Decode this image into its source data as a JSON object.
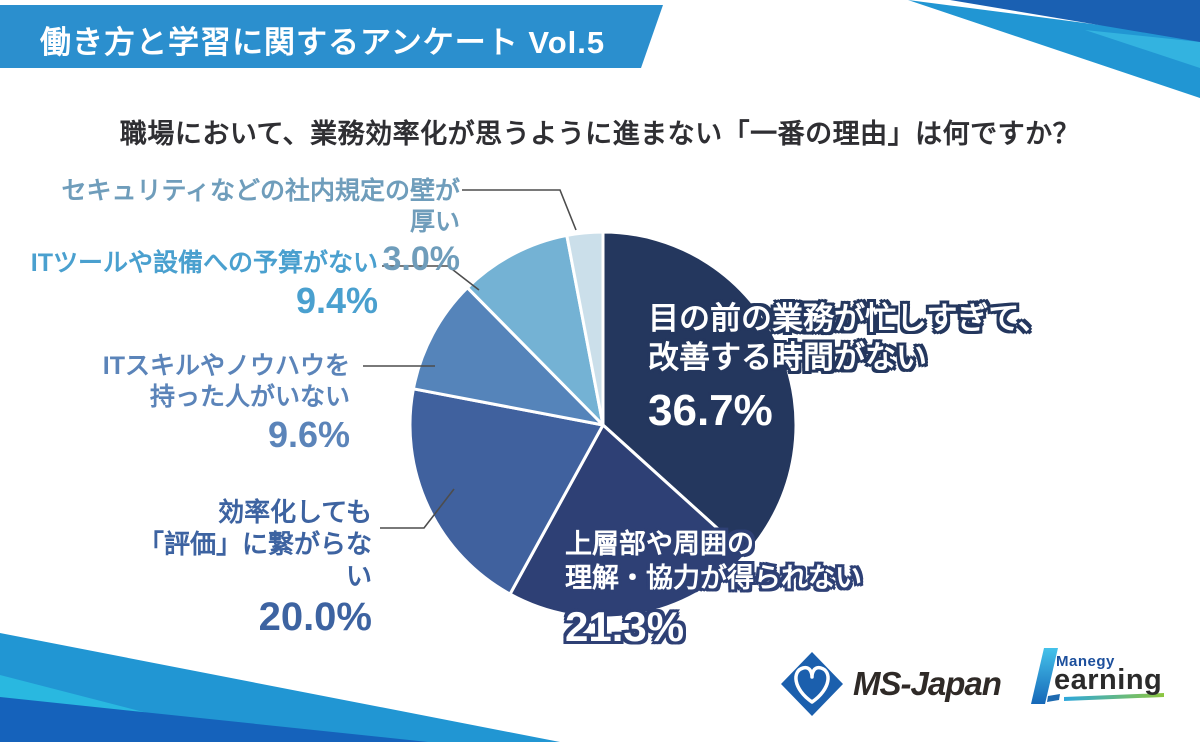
{
  "banner": {
    "title": "働き方と学習に関するアンケート Vol.5"
  },
  "title": "職場において、業務効率化が思うように進まない「一番の理由」は何ですか？",
  "chart_data": {
    "type": "pie",
    "title": "職場において、業務効率化が思うように進まない「一番の理由」は何ですか？",
    "unit": "%",
    "start_angle_deg": 0,
    "direction": "clockwise",
    "slices": [
      {
        "label": "目の前の業務が忙しすぎて、改善する時間がない",
        "value": 36.7,
        "color": "#24375e"
      },
      {
        "label": "上層部や周囲の理解・協力が得られない",
        "value": 21.3,
        "color": "#2e4075"
      },
      {
        "label": "効率化しても「評価」に繋がらない",
        "value": 20.0,
        "color": "#40619e"
      },
      {
        "label": "ITスキルやノウハウを持った人がいない",
        "value": 9.6,
        "color": "#5584ba"
      },
      {
        "label": "ITツールや設備への予算がない",
        "value": 9.4,
        "color": "#74b2d4"
      },
      {
        "label": "セキュリティなどの社内規定の壁が厚い",
        "value": 3.0,
        "color": "#cbdfea"
      }
    ]
  },
  "callouts": [
    {
      "line1": "セキュリティなどの社内規定の壁が厚い",
      "pct": "3.0%",
      "color": "#6f9dbb"
    },
    {
      "line1": "ITツールや設備への予算がない",
      "pct": "9.4%",
      "color": "#4aa0cf"
    },
    {
      "line1": "ITスキルやノウハウを",
      "line2": "持った人がいない",
      "pct": "9.6%",
      "color": "#5b84b9"
    },
    {
      "line1": "効率化しても",
      "line2": "「評価」に繋がらない",
      "pct": "20.0%",
      "color": "#3d63a1"
    }
  ],
  "inside_labels": [
    {
      "line1": "目の前の業務が忙しすぎて、",
      "line2": "改善する時間がない",
      "pct": "36.7%"
    },
    {
      "line1": "上層部や周囲の",
      "line2": "理解・協力が得られない",
      "pct": "21.3%"
    }
  ],
  "logos": {
    "ms_japan": "MS-Japan",
    "manegy": "Manegy",
    "learning": "earning"
  },
  "colors": {
    "banner": "#2b8fce",
    "deco_dark": "#1a60b2",
    "deco_mid": "#2196d3",
    "deco_cyan": "#33b3e0",
    "deco_cyan2": "#29b8e0",
    "deco_dark2": "#1562bb"
  }
}
